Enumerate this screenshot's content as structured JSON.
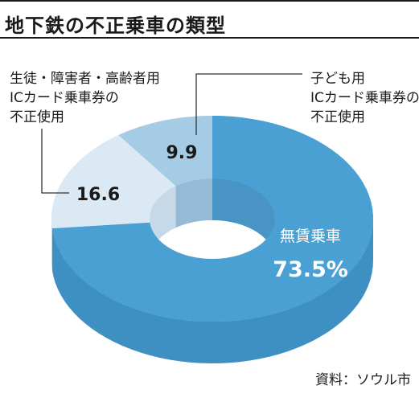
{
  "title": "地下鉄の不正乗車の類型",
  "source": "資料：ソウル市",
  "chart_data": {
    "type": "pie",
    "title": "地下鉄の不正乗車の類型",
    "categories": [
      "無賃乗車",
      "生徒・障害者・高齢者用ICカード乗車券の不正使用",
      "子ども用ICカード乗車券の不正使用"
    ],
    "values": [
      73.5,
      16.6,
      9.9
    ],
    "value_labels": [
      "73.5%",
      "16.6",
      "9.9"
    ],
    "category_lines": [
      [
        "無賃乗車"
      ],
      [
        "生徒・障害者・高齢者用",
        "ICカード乗車券の",
        "不正使用"
      ],
      [
        "子ども用",
        "ICカード乗車券の",
        "不正使用"
      ]
    ],
    "colors": {
      "top": [
        "#4a9fd3",
        "#dbe9f5",
        "#a6cbe5"
      ],
      "side": [
        "#3e8fc2",
        "#c3d7e8",
        "#8fb6d3"
      ]
    },
    "style": "3d-donut"
  }
}
